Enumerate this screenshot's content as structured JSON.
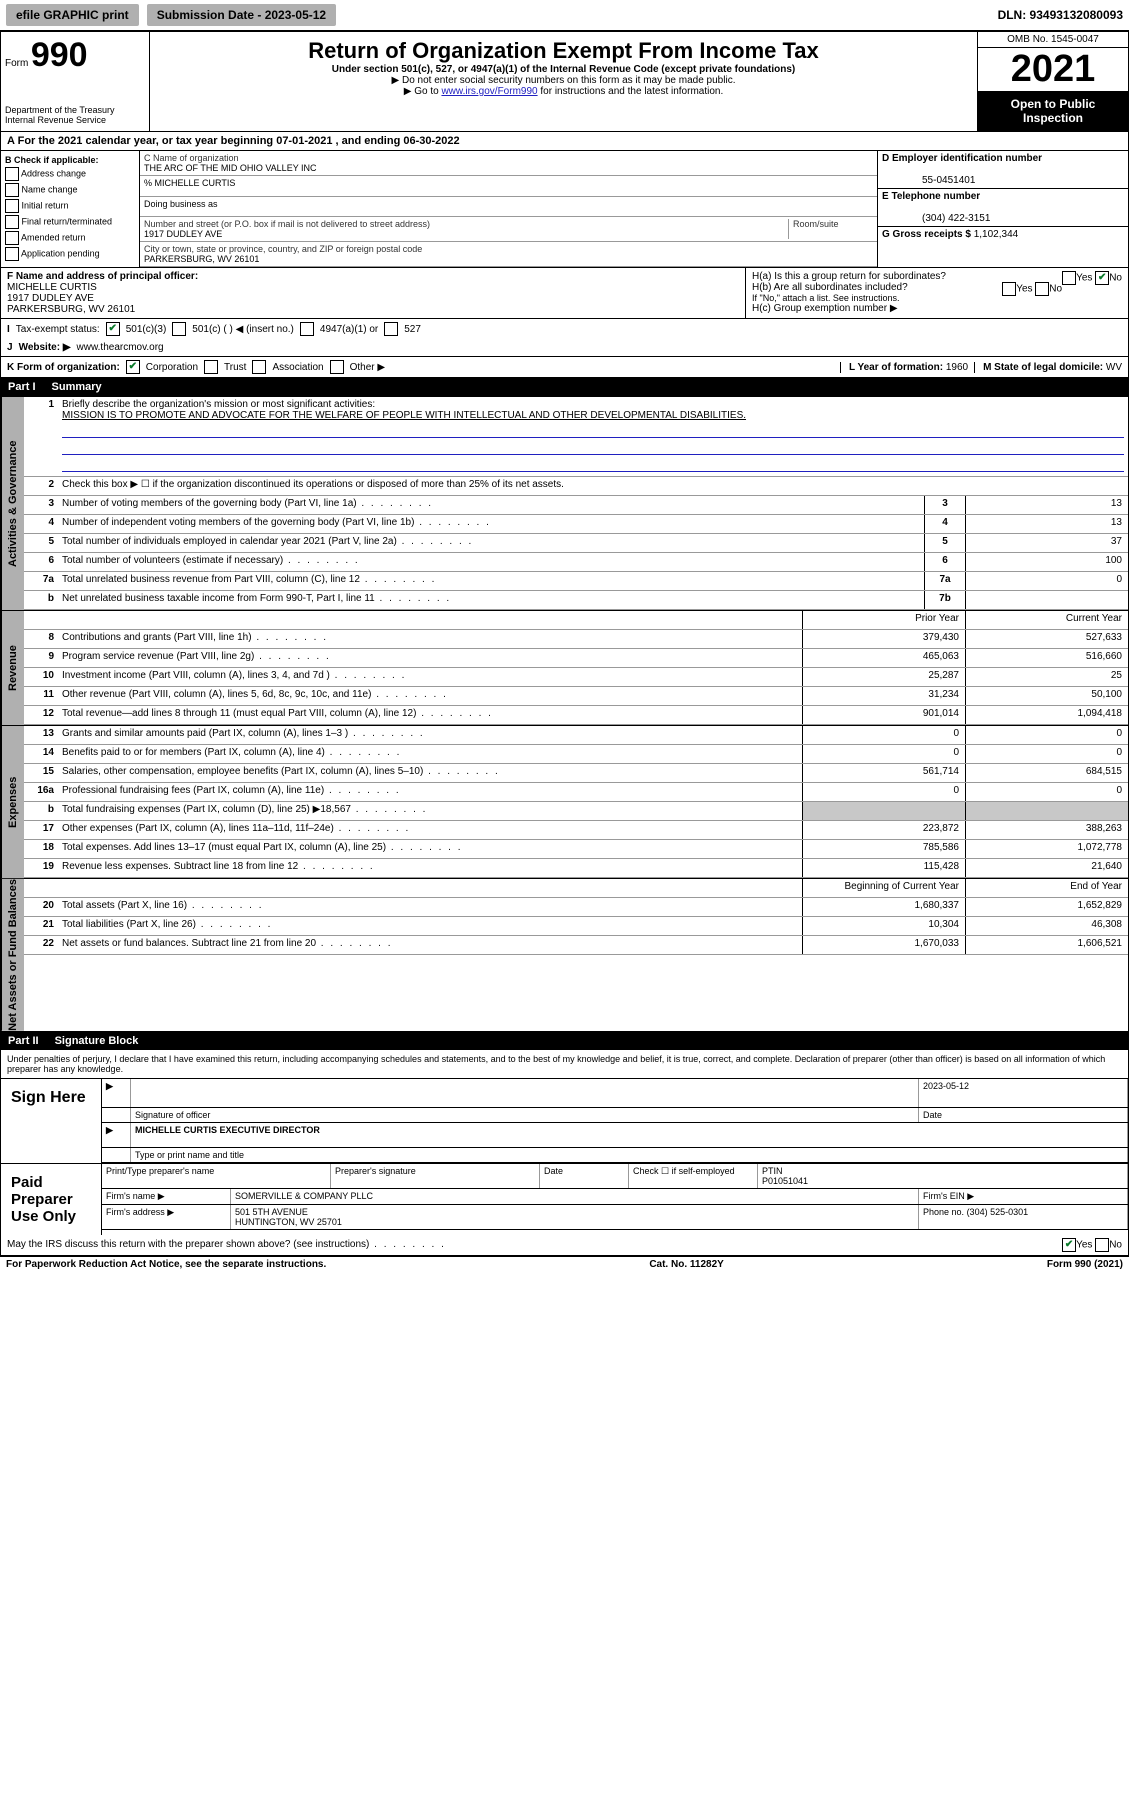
{
  "topbar": {
    "efile": "efile GRAPHIC print",
    "submission_label": "Submission Date - 2023-05-12",
    "dln": "DLN: 93493132080093"
  },
  "header": {
    "form_word": "Form",
    "form_num": "990",
    "dept": "Department of the Treasury",
    "irs": "Internal Revenue Service",
    "title": "Return of Organization Exempt From Income Tax",
    "subtitle": "Under section 501(c), 527, or 4947(a)(1) of the Internal Revenue Code (except private foundations)",
    "warn1": "▶ Do not enter social security numbers on this form as it may be made public.",
    "warn2_pre": "▶ Go to ",
    "warn2_link": "www.irs.gov/Form990",
    "warn2_post": " for instructions and the latest information.",
    "omb": "OMB No. 1545-0047",
    "year": "2021",
    "open": "Open to Public Inspection"
  },
  "lineA": "For the 2021 calendar year, or tax year beginning 07-01-2021   , and ending 06-30-2022",
  "boxB": {
    "label": "B Check if applicable:",
    "items": [
      "Address change",
      "Name change",
      "Initial return",
      "Final return/terminated",
      "Amended return",
      "Application pending"
    ]
  },
  "boxC": {
    "name_lbl": "C Name of organization",
    "name": "THE ARC OF THE MID OHIO VALLEY INC",
    "care_lbl": "% MICHELLE CURTIS",
    "dba_lbl": "Doing business as",
    "street_lbl": "Number and street (or P.O. box if mail is not delivered to street address)",
    "room_lbl": "Room/suite",
    "street": "1917 DUDLEY AVE",
    "city_lbl": "City or town, state or province, country, and ZIP or foreign postal code",
    "city": "PARKERSBURG, WV  26101"
  },
  "boxD": {
    "lbl": "D Employer identification number",
    "val": "55-0451401"
  },
  "boxE": {
    "lbl": "E Telephone number",
    "val": "(304) 422-3151"
  },
  "boxG": {
    "lbl": "G Gross receipts $",
    "val": "1,102,344"
  },
  "boxF": {
    "label": "F  Name and address of principal officer:",
    "name": "MICHELLE CURTIS",
    "addr1": "1917 DUDLEY AVE",
    "addr2": "PARKERSBURG, WV  26101"
  },
  "boxH": {
    "a": "H(a)  Is this a group return for subordinates?",
    "a_yes": "Yes",
    "a_no": "No",
    "b": "H(b)  Are all subordinates included?",
    "b_yes": "Yes",
    "b_no": "No",
    "hint": "If \"No,\" attach a list. See instructions.",
    "c": "H(c)  Group exemption number ▶"
  },
  "lineI": {
    "label": "Tax-exempt status:",
    "c501c3": "501(c)(3)",
    "c501c": "501(c) (   ) ◀ (insert no.)",
    "c4947": "4947(a)(1) or",
    "c527": "527"
  },
  "lineJ": {
    "label": "Website: ▶",
    "val": "www.thearcmov.org"
  },
  "lineK": {
    "label": "K Form of organization:",
    "corp": "Corporation",
    "trust": "Trust",
    "assoc": "Association",
    "other": "Other ▶"
  },
  "lineL": {
    "label": "L Year of formation:",
    "val": "1960"
  },
  "lineM": {
    "label": "M State of legal domicile:",
    "val": "WV"
  },
  "part1": {
    "num": "Part I",
    "title": "Summary"
  },
  "q1": {
    "num": "1",
    "text": "Briefly describe the organization's mission or most significant activities:",
    "mission": "MISSION IS TO PROMOTE AND ADVOCATE FOR THE WELFARE OF PEOPLE WITH INTELLECTUAL AND OTHER DEVELOPMENTAL DISABILITIES."
  },
  "q2": {
    "num": "2",
    "text": "Check this box ▶ ☐  if the organization discontinued its operations or disposed of more than 25% of its net assets."
  },
  "sides": {
    "gov": "Activities & Governance",
    "rev": "Revenue",
    "exp": "Expenses",
    "net": "Net Assets or Fund Balances"
  },
  "colhdr": {
    "prior": "Prior Year",
    "current": "Current Year",
    "beg": "Beginning of Current Year",
    "end": "End of Year"
  },
  "rows_gov": [
    {
      "n": "3",
      "d": "Number of voting members of the governing body (Part VI, line 1a)",
      "box": "3",
      "v": "13"
    },
    {
      "n": "4",
      "d": "Number of independent voting members of the governing body (Part VI, line 1b)",
      "box": "4",
      "v": "13"
    },
    {
      "n": "5",
      "d": "Total number of individuals employed in calendar year 2021 (Part V, line 2a)",
      "box": "5",
      "v": "37"
    },
    {
      "n": "6",
      "d": "Total number of volunteers (estimate if necessary)",
      "box": "6",
      "v": "100"
    },
    {
      "n": "7a",
      "d": "Total unrelated business revenue from Part VIII, column (C), line 12",
      "box": "7a",
      "v": "0"
    },
    {
      "n": "b",
      "d": "Net unrelated business taxable income from Form 990-T, Part I, line 11",
      "box": "7b",
      "v": ""
    }
  ],
  "rows_rev": [
    {
      "n": "8",
      "d": "Contributions and grants (Part VIII, line 1h)",
      "p": "379,430",
      "c": "527,633"
    },
    {
      "n": "9",
      "d": "Program service revenue (Part VIII, line 2g)",
      "p": "465,063",
      "c": "516,660"
    },
    {
      "n": "10",
      "d": "Investment income (Part VIII, column (A), lines 3, 4, and 7d )",
      "p": "25,287",
      "c": "25"
    },
    {
      "n": "11",
      "d": "Other revenue (Part VIII, column (A), lines 5, 6d, 8c, 9c, 10c, and 11e)",
      "p": "31,234",
      "c": "50,100"
    },
    {
      "n": "12",
      "d": "Total revenue—add lines 8 through 11 (must equal Part VIII, column (A), line 12)",
      "p": "901,014",
      "c": "1,094,418"
    }
  ],
  "rows_exp": [
    {
      "n": "13",
      "d": "Grants and similar amounts paid (Part IX, column (A), lines 1–3 )",
      "p": "0",
      "c": "0"
    },
    {
      "n": "14",
      "d": "Benefits paid to or for members (Part IX, column (A), line 4)",
      "p": "0",
      "c": "0"
    },
    {
      "n": "15",
      "d": "Salaries, other compensation, employee benefits (Part IX, column (A), lines 5–10)",
      "p": "561,714",
      "c": "684,515"
    },
    {
      "n": "16a",
      "d": "Professional fundraising fees (Part IX, column (A), line 11e)",
      "p": "0",
      "c": "0"
    },
    {
      "n": "b",
      "d": "Total fundraising expenses (Part IX, column (D), line 25) ▶18,567",
      "p": "",
      "c": "",
      "shaded": true
    },
    {
      "n": "17",
      "d": "Other expenses (Part IX, column (A), lines 11a–11d, 11f–24e)",
      "p": "223,872",
      "c": "388,263"
    },
    {
      "n": "18",
      "d": "Total expenses. Add lines 13–17 (must equal Part IX, column (A), line 25)",
      "p": "785,586",
      "c": "1,072,778"
    },
    {
      "n": "19",
      "d": "Revenue less expenses. Subtract line 18 from line 12",
      "p": "115,428",
      "c": "21,640"
    }
  ],
  "rows_net": [
    {
      "n": "20",
      "d": "Total assets (Part X, line 16)",
      "p": "1,680,337",
      "c": "1,652,829"
    },
    {
      "n": "21",
      "d": "Total liabilities (Part X, line 26)",
      "p": "10,304",
      "c": "46,308"
    },
    {
      "n": "22",
      "d": "Net assets or fund balances. Subtract line 21 from line 20",
      "p": "1,670,033",
      "c": "1,606,521"
    }
  ],
  "part2": {
    "num": "Part II",
    "title": "Signature Block"
  },
  "penalties": "Under penalties of perjury, I declare that I have examined this return, including accompanying schedules and statements, and to the best of my knowledge and belief, it is true, correct, and complete. Declaration of preparer (other than officer) is based on all information of which preparer has any knowledge.",
  "sign": {
    "here": "Sign Here",
    "sig_lbl": "Signature of officer",
    "date_lbl": "Date",
    "date": "2023-05-12",
    "name": "MICHELLE CURTIS  EXECUTIVE DIRECTOR",
    "name_lbl": "Type or print name and title"
  },
  "paid": {
    "title": "Paid Preparer Use Only",
    "print_lbl": "Print/Type preparer's name",
    "prep_sig_lbl": "Preparer's signature",
    "date_lbl": "Date",
    "check_lbl": "Check ☐ if self-employed",
    "ptin_lbl": "PTIN",
    "ptin": "P01051041",
    "firm_name_lbl": "Firm's name    ▶",
    "firm_name": "SOMERVILLE & COMPANY PLLC",
    "firm_ein_lbl": "Firm's EIN ▶",
    "firm_addr_lbl": "Firm's address ▶",
    "firm_addr1": "501 5TH AVENUE",
    "firm_addr2": "HUNTINGTON, WV  25701",
    "phone_lbl": "Phone no.",
    "phone": "(304) 525-0301"
  },
  "discuss": {
    "text": "May the IRS discuss this return with the preparer shown above? (see instructions)",
    "yes": "Yes",
    "no": "No"
  },
  "footer": {
    "left": "For Paperwork Reduction Act Notice, see the separate instructions.",
    "mid": "Cat. No. 11282Y",
    "right": "Form 990 (2021)"
  }
}
